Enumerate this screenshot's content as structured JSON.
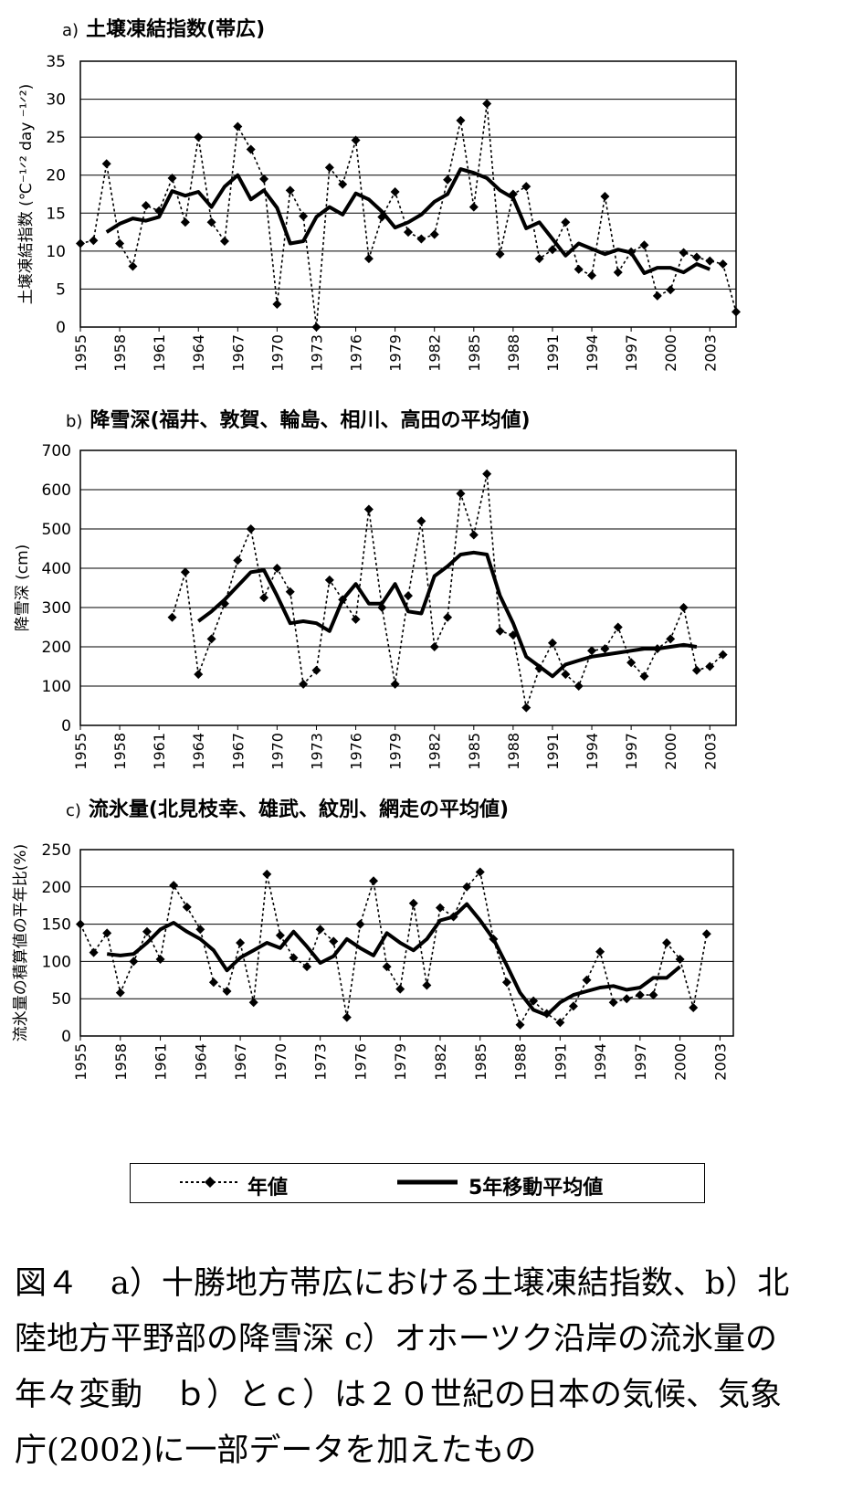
{
  "chart_data": [
    {
      "type": "line",
      "title_letter": "a)",
      "title": "土壌凍結指数(帯広)",
      "ylabel": "土壌凍結指数 (℃⁻¹ᐟ² day ⁻¹ᐟ²)",
      "xlabel": "",
      "ylim": [
        0,
        35
      ],
      "yticks": [
        0,
        5,
        10,
        15,
        20,
        25,
        30,
        35
      ],
      "xlim": [
        1955,
        2005
      ],
      "xticks": [
        "1955",
        "1958",
        "1961",
        "1964",
        "1967",
        "1970",
        "1973",
        "1976",
        "1979",
        "1982",
        "1985",
        "1988",
        "1991",
        "1994",
        "1997",
        "2000",
        "2003"
      ],
      "grid": "horizontal",
      "series": [
        {
          "name": "年値",
          "style": "dotted-diamond",
          "x": [
            1955,
            1956,
            1957,
            1958,
            1959,
            1960,
            1961,
            1962,
            1963,
            1964,
            1965,
            1966,
            1967,
            1968,
            1969,
            1970,
            1971,
            1972,
            1973,
            1974,
            1975,
            1976,
            1977,
            1978,
            1979,
            1980,
            1981,
            1982,
            1983,
            1984,
            1985,
            1986,
            1987,
            1988,
            1989,
            1990,
            1991,
            1992,
            1993,
            1994,
            1995,
            1996,
            1997,
            1998,
            1999,
            2000,
            2001,
            2002,
            2003,
            2004,
            2005
          ],
          "y": [
            11,
            11.4,
            21.5,
            11,
            8,
            16,
            15.3,
            19.6,
            13.8,
            25,
            13.8,
            11.3,
            26.4,
            23.4,
            19.5,
            3,
            18,
            14.6,
            0,
            21,
            18.8,
            24.6,
            9,
            14.5,
            17.8,
            12.5,
            11.6,
            12.2,
            19.4,
            27.2,
            15.8,
            29.4,
            9.6,
            17.5,
            18.5,
            9,
            10.2,
            13.8,
            7.6,
            6.8,
            17.2,
            7.2,
            9.9,
            10.8,
            4.1,
            4.9,
            9.8,
            9.2,
            8.7,
            8.3,
            2
          ]
        },
        {
          "name": "5年移動平均値",
          "style": "solid-thick",
          "x": [
            1957,
            1958,
            1959,
            1960,
            1961,
            1962,
            1963,
            1964,
            1965,
            1966,
            1967,
            1968,
            1969,
            1970,
            1971,
            1972,
            1973,
            1974,
            1975,
            1976,
            1977,
            1978,
            1979,
            1980,
            1981,
            1982,
            1983,
            1984,
            1985,
            1986,
            1987,
            1988,
            1989,
            1990,
            1991,
            1992,
            1993,
            1994,
            1995,
            1996,
            1997,
            1998,
            1999,
            2000,
            2001,
            2002,
            2003
          ],
          "y": [
            12.5,
            13.6,
            14.3,
            14,
            14.5,
            17.9,
            17.3,
            17.8,
            15.8,
            18.5,
            20,
            16.8,
            18,
            15.7,
            11,
            11.3,
            14.5,
            15.8,
            14.8,
            17.6,
            16.8,
            15.2,
            13.1,
            13.8,
            14.8,
            16.5,
            17.5,
            20.8,
            20.3,
            19.6,
            18,
            17,
            13,
            13.8,
            11.6,
            9.4,
            11,
            10.3,
            9.6,
            10.2,
            9.8,
            7.1,
            7.8,
            7.8,
            7.2,
            8.3,
            7.6
          ]
        }
      ]
    },
    {
      "type": "line",
      "title_letter": "b)",
      "title": "降雪深(福井、敦賀、輪島、相川、高田の平均値)",
      "ylabel": "降雪深 (cm)",
      "xlabel": "",
      "ylim": [
        0,
        700
      ],
      "yticks": [
        0,
        100,
        200,
        300,
        400,
        500,
        600,
        700
      ],
      "xlim": [
        1955,
        2005
      ],
      "xticks": [
        "1955",
        "1958",
        "1961",
        "1964",
        "1967",
        "1970",
        "1973",
        "1976",
        "1979",
        "1982",
        "1985",
        "1988",
        "1991",
        "1994",
        "1997",
        "2000",
        "2003"
      ],
      "grid": "horizontal",
      "series": [
        {
          "name": "年値",
          "style": "dotted-diamond",
          "x": [
            1962,
            1963,
            1964,
            1965,
            1966,
            1967,
            1968,
            1969,
            1970,
            1971,
            1972,
            1973,
            1974,
            1975,
            1976,
            1977,
            1978,
            1979,
            1980,
            1981,
            1982,
            1983,
            1984,
            1985,
            1986,
            1987,
            1988,
            1989,
            1990,
            1991,
            1992,
            1993,
            1994,
            1995,
            1996,
            1997,
            1998,
            1999,
            2000,
            2001,
            2002,
            2003,
            2004
          ],
          "y": [
            275,
            390,
            130,
            220,
            310,
            420,
            500,
            325,
            400,
            340,
            105,
            140,
            370,
            320,
            270,
            550,
            300,
            105,
            330,
            520,
            200,
            275,
            590,
            485,
            640,
            240,
            230,
            45,
            145,
            210,
            130,
            100,
            190,
            195,
            250,
            160,
            125,
            195,
            220,
            300,
            140,
            150,
            180
          ]
        },
        {
          "name": "5年移動平均値",
          "style": "solid-thick",
          "x": [
            1964,
            1965,
            1966,
            1967,
            1968,
            1969,
            1970,
            1971,
            1972,
            1973,
            1974,
            1975,
            1976,
            1977,
            1978,
            1979,
            1980,
            1981,
            1982,
            1983,
            1984,
            1985,
            1986,
            1987,
            1988,
            1989,
            1990,
            1991,
            1992,
            1993,
            1994,
            1995,
            1996,
            1997,
            1998,
            1999,
            2000,
            2001,
            2002
          ],
          "y": [
            265,
            290,
            320,
            355,
            390,
            395,
            330,
            260,
            265,
            260,
            240,
            320,
            360,
            310,
            310,
            360,
            290,
            285,
            380,
            405,
            435,
            440,
            435,
            330,
            260,
            175,
            150,
            125,
            155,
            165,
            175,
            180,
            185,
            190,
            195,
            195,
            200,
            205,
            200
          ]
        }
      ]
    },
    {
      "type": "line",
      "title_letter": "c)",
      "title": "流氷量(北見枝幸、雄武、紋別、網走の平均値)",
      "ylabel": "流氷量の積算値の平年比(%)",
      "xlabel": "",
      "ylim": [
        0,
        250
      ],
      "yticks": [
        0,
        50,
        100,
        150,
        200,
        250
      ],
      "xlim": [
        1955,
        2004
      ],
      "xticks": [
        "1955",
        "1958",
        "1961",
        "1964",
        "1967",
        "1970",
        "1973",
        "1976",
        "1979",
        "1982",
        "1985",
        "1988",
        "1991",
        "1994",
        "1997",
        "2000",
        "2003"
      ],
      "grid": "horizontal",
      "series": [
        {
          "name": "年値",
          "style": "dotted-diamond",
          "x": [
            1955,
            1956,
            1957,
            1958,
            1959,
            1960,
            1961,
            1962,
            1963,
            1964,
            1965,
            1966,
            1967,
            1968,
            1969,
            1970,
            1971,
            1972,
            1973,
            1974,
            1975,
            1976,
            1977,
            1978,
            1979,
            1980,
            1981,
            1982,
            1983,
            1984,
            1985,
            1986,
            1987,
            1988,
            1989,
            1990,
            1991,
            1992,
            1993,
            1994,
            1995,
            1996,
            1997,
            1998,
            1999,
            2000,
            2001,
            2002
          ],
          "y": [
            150,
            112,
            138,
            58,
            100,
            140,
            103,
            202,
            173,
            143,
            72,
            60,
            125,
            45,
            217,
            135,
            105,
            93,
            143,
            127,
            25,
            150,
            208,
            93,
            63,
            178,
            68,
            172,
            160,
            200,
            220,
            130,
            72,
            15,
            47,
            30,
            18,
            40,
            75,
            113,
            45,
            50,
            55,
            55,
            125,
            103,
            38,
            137
          ]
        },
        {
          "name": "5年移動平均値",
          "style": "solid-thick",
          "x": [
            1957,
            1958,
            1959,
            1960,
            1961,
            1962,
            1963,
            1964,
            1965,
            1966,
            1967,
            1968,
            1969,
            1970,
            1971,
            1972,
            1973,
            1974,
            1975,
            1976,
            1977,
            1978,
            1979,
            1980,
            1981,
            1982,
            1983,
            1984,
            1985,
            1986,
            1987,
            1988,
            1989,
            1990,
            1991,
            1992,
            1993,
            1994,
            1995,
            1996,
            1997,
            1998,
            1999,
            2000
          ],
          "y": [
            110,
            108,
            110,
            125,
            143,
            152,
            140,
            130,
            115,
            88,
            105,
            115,
            125,
            118,
            140,
            120,
            98,
            107,
            130,
            118,
            108,
            138,
            125,
            115,
            130,
            155,
            160,
            177,
            155,
            130,
            95,
            58,
            35,
            28,
            45,
            55,
            60,
            65,
            67,
            62,
            65,
            78,
            78,
            93
          ]
        }
      ]
    }
  ],
  "legend": {
    "annual_label": "年値",
    "moving_avg_label": "5年移動平均値"
  },
  "caption": {
    "line1": "図４　a）十勝地方帯広における土壌凍結指数、b）北",
    "line2": "陸地方平野部の降雪深 c）オホーツク沿岸の流氷量の",
    "line3": "年々変動　ｂ）とｃ）は２０世紀の日本の気候、気象",
    "line4": "庁(2002)に一部データを加えたもの"
  }
}
